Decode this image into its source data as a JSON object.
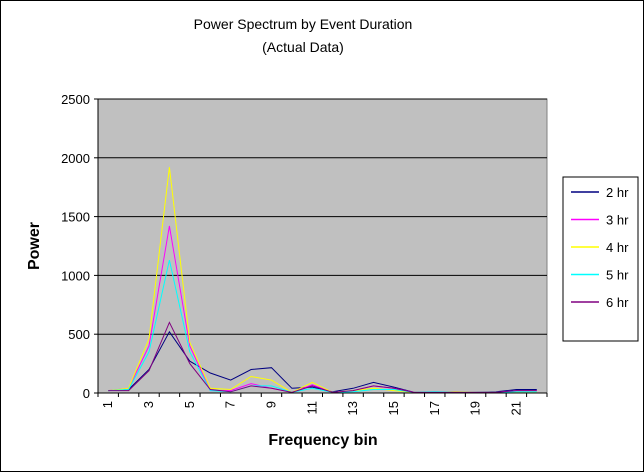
{
  "chart_data": {
    "type": "line",
    "title": "Power Spectrum by Event Duration",
    "subtitle": "(Actual Data)",
    "xlabel": "Frequency bin",
    "ylabel": "Power",
    "ylim": [
      0,
      2500
    ],
    "yticks": [
      "0",
      "500",
      "1000",
      "1500",
      "2000",
      "2500"
    ],
    "x": [
      1,
      2,
      3,
      4,
      5,
      6,
      7,
      8,
      9,
      10,
      11,
      12,
      13,
      14,
      15,
      16,
      17,
      18,
      19,
      20,
      21,
      22
    ],
    "xtick_labels": [
      "1",
      "3",
      "5",
      "7",
      "9",
      "11",
      "13",
      "15",
      "17",
      "19",
      "21"
    ],
    "plot_background": "#c0c0c0",
    "grid": true,
    "legend_position": "right",
    "series": [
      {
        "name": "2 hr",
        "color": "#000080",
        "values": [
          20,
          30,
          200,
          520,
          270,
          170,
          110,
          200,
          215,
          40,
          50,
          10,
          40,
          90,
          50,
          5,
          5,
          5,
          5,
          10,
          30,
          30
        ]
      },
      {
        "name": "3 hr",
        "color": "#ff00ff",
        "values": [
          20,
          40,
          400,
          1420,
          400,
          20,
          20,
          80,
          40,
          5,
          70,
          5,
          20,
          60,
          40,
          5,
          5,
          10,
          5,
          5,
          20,
          20
        ]
      },
      {
        "name": "4 hr",
        "color": "#ffff00",
        "values": [
          20,
          40,
          460,
          1920,
          430,
          40,
          30,
          140,
          110,
          5,
          90,
          5,
          20,
          40,
          20,
          5,
          5,
          10,
          5,
          5,
          10,
          10
        ]
      },
      {
        "name": "5 hr",
        "color": "#00ffff",
        "values": [
          20,
          30,
          350,
          1130,
          350,
          20,
          10,
          60,
          60,
          5,
          40,
          5,
          10,
          30,
          30,
          5,
          10,
          5,
          5,
          5,
          10,
          10
        ]
      },
      {
        "name": "6 hr",
        "color": "#800080",
        "values": [
          20,
          20,
          190,
          600,
          250,
          30,
          10,
          60,
          40,
          5,
          60,
          5,
          20,
          60,
          40,
          5,
          5,
          5,
          5,
          5,
          20,
          20
        ]
      }
    ]
  }
}
